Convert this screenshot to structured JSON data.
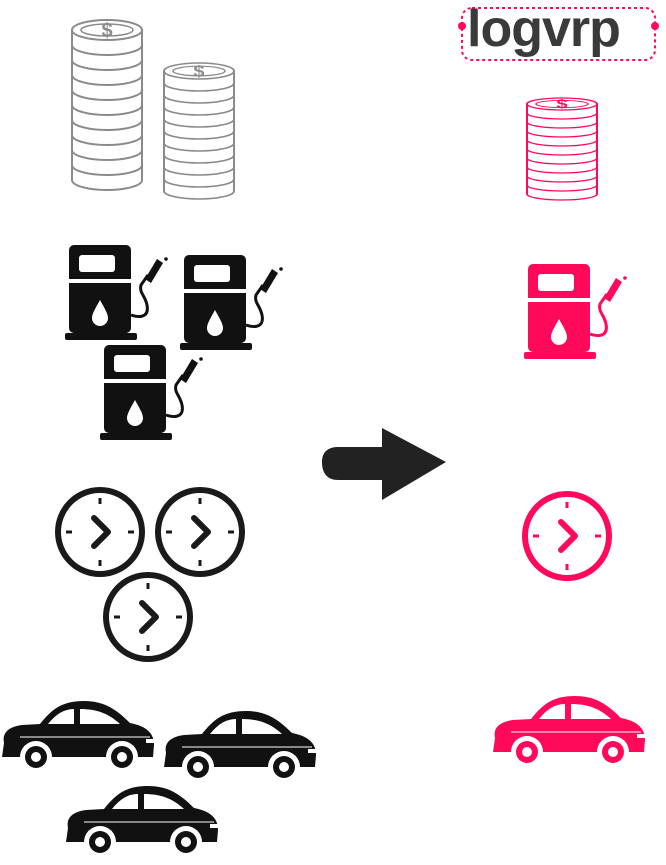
{
  "brand": {
    "logo_text": "logvrp",
    "accent_color": "#ff0a5a",
    "dark_color": "#111111",
    "light_stroke": "#8a8a8a"
  },
  "before": {
    "coins": {
      "icon": "coin-stack-icon",
      "count": 2
    },
    "fuel_pumps": {
      "icon": "fuel-pump-icon",
      "count": 3
    },
    "clocks": {
      "icon": "clock-icon",
      "count": 3
    },
    "cars": {
      "icon": "car-icon",
      "count": 3
    }
  },
  "transition": {
    "icon": "arrow-right-icon"
  },
  "after": {
    "coins": {
      "icon": "coin-stack-icon",
      "count": 1
    },
    "fuel_pumps": {
      "icon": "fuel-pump-icon",
      "count": 1
    },
    "clocks": {
      "icon": "clock-icon",
      "count": 1
    },
    "cars": {
      "icon": "car-icon",
      "count": 1
    }
  }
}
